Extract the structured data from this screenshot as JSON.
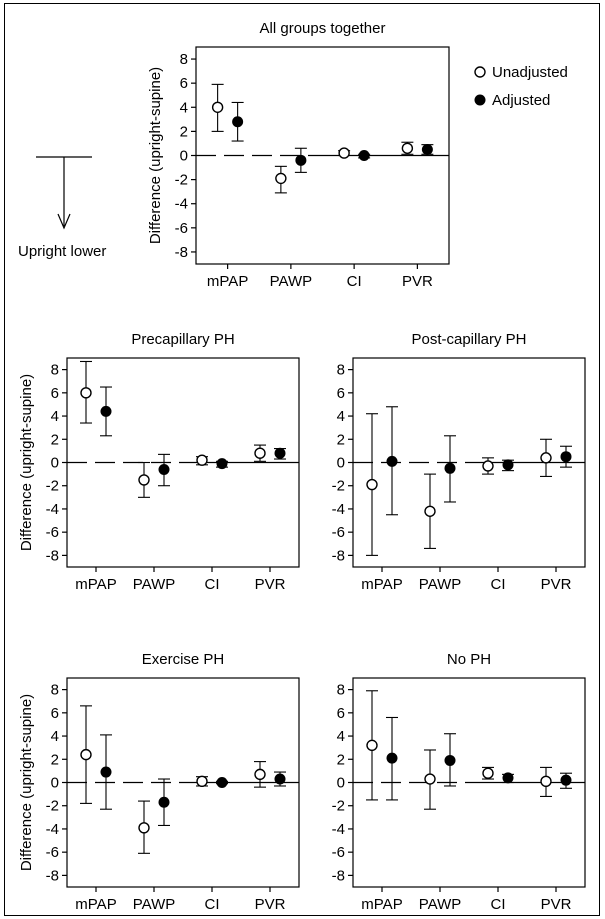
{
  "legend": {
    "unadjusted": "Unadjusted",
    "adjusted": "Adjusted"
  },
  "indicator": {
    "label": "Upright lower"
  },
  "chart_data": [
    {
      "type": "scatter",
      "title": "All groups together",
      "ylabel": "Difference (upright-supine)",
      "categories": [
        "mPAP",
        "PAWP",
        "CI",
        "PVR"
      ],
      "ylim": [
        -9,
        9
      ],
      "yticks": [
        8,
        6,
        4,
        2,
        0,
        -2,
        -4,
        -6,
        -8
      ],
      "series": [
        {
          "name": "Unadjusted",
          "values": [
            4.0,
            -1.9,
            0.2,
            0.6
          ],
          "lower": [
            2.0,
            -3.1,
            0.0,
            0.1
          ],
          "upper": [
            5.9,
            -0.9,
            0.4,
            1.1
          ]
        },
        {
          "name": "Adjusted",
          "values": [
            2.8,
            -0.4,
            0.0,
            0.5
          ],
          "lower": [
            1.2,
            -1.4,
            -0.2,
            0.1
          ],
          "upper": [
            4.4,
            0.6,
            0.1,
            0.9
          ]
        }
      ]
    },
    {
      "type": "scatter",
      "title": "Precapillary PH",
      "ylabel": "Difference (upright-supine)",
      "categories": [
        "mPAP",
        "PAWP",
        "CI",
        "PVR"
      ],
      "ylim": [
        -9,
        9
      ],
      "yticks": [
        8,
        6,
        4,
        2,
        0,
        -2,
        -4,
        -6,
        -8
      ],
      "series": [
        {
          "name": "Unadjusted",
          "values": [
            6.0,
            -1.5,
            0.2,
            0.8
          ],
          "lower": [
            3.4,
            -3.0,
            -0.2,
            0.1
          ],
          "upper": [
            8.7,
            0.0,
            0.5,
            1.5
          ]
        },
        {
          "name": "Adjusted",
          "values": [
            4.4,
            -0.6,
            -0.1,
            0.8
          ],
          "lower": [
            2.3,
            -2.0,
            -0.4,
            0.3
          ],
          "upper": [
            6.5,
            0.7,
            0.1,
            1.2
          ]
        }
      ]
    },
    {
      "type": "scatter",
      "title": "Post-capillary PH",
      "ylabel": "",
      "categories": [
        "mPAP",
        "PAWP",
        "CI",
        "PVR"
      ],
      "ylim": [
        -9,
        9
      ],
      "yticks": [
        8,
        6,
        4,
        2,
        0,
        -2,
        -4,
        -6,
        -8
      ],
      "series": [
        {
          "name": "Unadjusted",
          "values": [
            -1.9,
            -4.2,
            -0.3,
            0.4
          ],
          "lower": [
            -8.0,
            -7.4,
            -1.0,
            -1.2
          ],
          "upper": [
            4.2,
            -1.0,
            0.4,
            2.0
          ]
        },
        {
          "name": "Adjusted",
          "values": [
            0.1,
            -0.5,
            -0.2,
            0.5
          ],
          "lower": [
            -4.5,
            -3.4,
            -0.7,
            -0.4
          ],
          "upper": [
            4.8,
            2.3,
            0.2,
            1.4
          ]
        }
      ]
    },
    {
      "type": "scatter",
      "title": "Exercise PH",
      "ylabel": "Difference (upright-supine)",
      "categories": [
        "mPAP",
        "PAWP",
        "CI",
        "PVR"
      ],
      "ylim": [
        -9,
        9
      ],
      "yticks": [
        8,
        6,
        4,
        2,
        0,
        -2,
        -4,
        -6,
        -8
      ],
      "series": [
        {
          "name": "Unadjusted",
          "values": [
            2.4,
            -3.9,
            0.1,
            0.7
          ],
          "lower": [
            -1.8,
            -6.1,
            -0.3,
            -0.4
          ],
          "upper": [
            6.6,
            -1.6,
            0.5,
            1.8
          ]
        },
        {
          "name": "Adjusted",
          "values": [
            0.9,
            -1.7,
            0.0,
            0.3
          ],
          "lower": [
            -2.3,
            -3.7,
            -0.1,
            -0.3
          ],
          "upper": [
            4.1,
            0.3,
            0.1,
            0.9
          ]
        }
      ]
    },
    {
      "type": "scatter",
      "title": "No PH",
      "ylabel": "",
      "categories": [
        "mPAP",
        "PAWP",
        "CI",
        "PVR"
      ],
      "ylim": [
        -9,
        9
      ],
      "yticks": [
        8,
        6,
        4,
        2,
        0,
        -2,
        -4,
        -6,
        -8
      ],
      "series": [
        {
          "name": "Unadjusted",
          "values": [
            3.2,
            0.3,
            0.8,
            0.1
          ],
          "lower": [
            -1.5,
            -2.3,
            0.3,
            -1.2
          ],
          "upper": [
            7.9,
            2.8,
            1.3,
            1.3
          ]
        },
        {
          "name": "Adjusted",
          "values": [
            2.1,
            1.9,
            0.4,
            0.2
          ],
          "lower": [
            -1.5,
            -0.3,
            0.0,
            -0.5
          ],
          "upper": [
            5.6,
            4.2,
            0.7,
            0.8
          ]
        }
      ]
    }
  ]
}
